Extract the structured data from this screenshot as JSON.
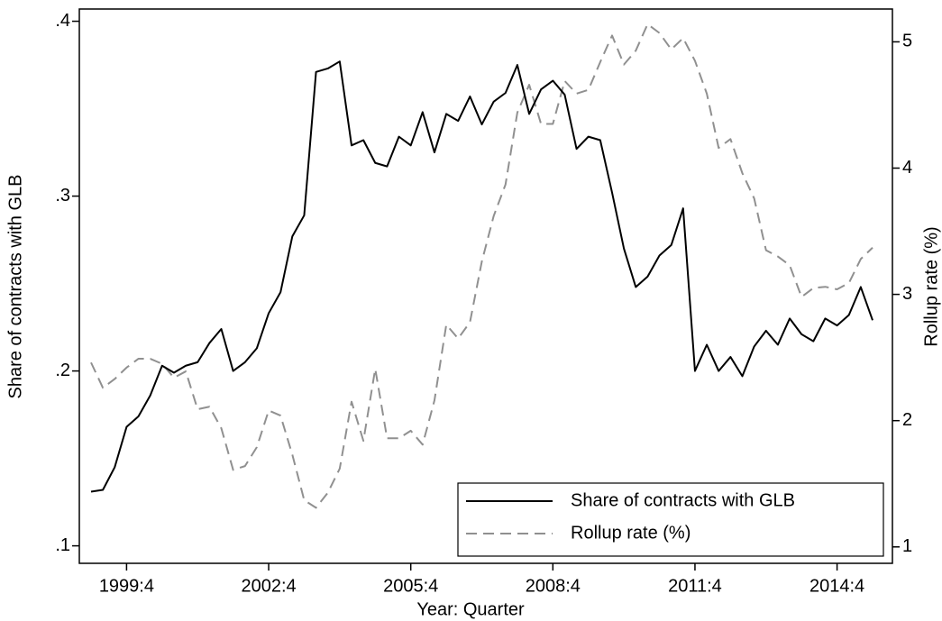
{
  "chart_data": {
    "type": "line",
    "x_label": "Year: Quarter",
    "y_label": "Share of contracts with GLB",
    "y2_label": "Rollup rate (%)",
    "categories": [
      null,
      null,
      null,
      "1999:4",
      null,
      null,
      null,
      null,
      null,
      null,
      null,
      null,
      null,
      null,
      null,
      "2002:4",
      null,
      null,
      null,
      null,
      null,
      null,
      null,
      null,
      null,
      null,
      null,
      "2005:4",
      null,
      null,
      null,
      null,
      null,
      null,
      null,
      null,
      null,
      null,
      null,
      "2008:4",
      null,
      null,
      null,
      null,
      null,
      null,
      null,
      null,
      null,
      null,
      null,
      "2011:4",
      null,
      null,
      null,
      null,
      null,
      null,
      null,
      null,
      null,
      null,
      null,
      "2014:4",
      null,
      null,
      null
    ],
    "ylim": [
      0.09,
      0.407
    ],
    "yticks": [
      {
        "value": 0.1,
        "label": ".1"
      },
      {
        "value": 0.2,
        "label": ".2"
      },
      {
        "value": 0.3,
        "label": ".3"
      },
      {
        "value": 0.4,
        "label": ".4"
      }
    ],
    "y2lim": [
      0.87,
      5.26
    ],
    "y2ticks": [
      1,
      2,
      3,
      4,
      5
    ],
    "legend": "bottom-right",
    "series": [
      {
        "name": "Share of contracts with GLB",
        "color": "#000000",
        "dash": "solid",
        "values": [
          0.131,
          0.132,
          0.145,
          0.168,
          0.174,
          0.186,
          0.203,
          0.199,
          0.203,
          0.205,
          0.216,
          0.224,
          0.2,
          0.205,
          0.213,
          0.233,
          0.245,
          0.277,
          0.289,
          0.371,
          0.373,
          0.377,
          0.329,
          0.332,
          0.319,
          0.317,
          0.334,
          0.329,
          0.348,
          0.325,
          0.347,
          0.343,
          0.357,
          0.341,
          0.354,
          0.359,
          0.375,
          0.347,
          0.361,
          0.366,
          0.358,
          0.327,
          0.334,
          0.332,
          0.302,
          0.27,
          0.248,
          0.254,
          0.266,
          0.272,
          0.293,
          0.2,
          0.215,
          0.2,
          0.208,
          0.197,
          0.214,
          0.223,
          0.215,
          0.23,
          0.221,
          0.217,
          0.23,
          0.226,
          0.232,
          0.248,
          0.229
        ]
      },
      {
        "name": "Rollup rate (%)",
        "color": "#909090",
        "dash": "dashed",
        "axis": "y2",
        "values": [
          2.46,
          2.26,
          2.33,
          2.42,
          2.49,
          2.49,
          2.45,
          2.34,
          2.39,
          2.09,
          2.11,
          1.94,
          1.61,
          1.64,
          1.79,
          2.08,
          2.04,
          1.73,
          1.37,
          1.31,
          1.43,
          1.62,
          2.15,
          1.84,
          2.41,
          1.86,
          1.86,
          1.92,
          1.81,
          2.16,
          2.76,
          2.65,
          2.78,
          3.26,
          3.62,
          3.87,
          4.44,
          4.66,
          4.35,
          4.35,
          4.69,
          4.59,
          4.62,
          4.84,
          5.05,
          4.82,
          4.93,
          5.14,
          5.07,
          4.94,
          5.03,
          4.85,
          4.59,
          4.16,
          4.23,
          3.96,
          3.76,
          3.35,
          3.3,
          3.23,
          2.98,
          3.05,
          3.06,
          3.04,
          3.09,
          3.28,
          3.37
        ]
      }
    ]
  }
}
